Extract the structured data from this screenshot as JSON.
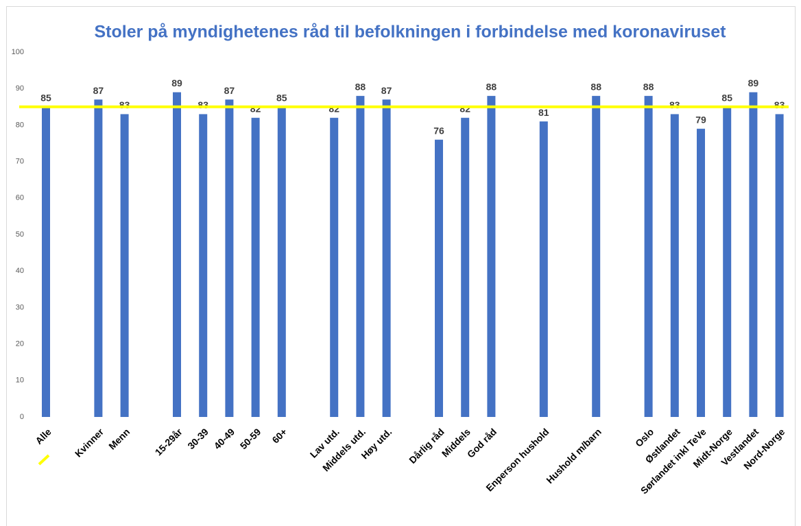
{
  "chart_data": {
    "type": "bar",
    "title": "Stoler på myndighetenes råd til befolkningen i forbindelse med koronaviruset",
    "categories": [
      "Alle",
      null,
      "Kvinner",
      "Menn",
      null,
      "15-29år",
      "30-39",
      "40-49",
      "50-59",
      "60+",
      null,
      "Lav utd.",
      "Middels utd.",
      "Høy utd.",
      null,
      "Dårlig råd",
      "Middels",
      "God råd",
      null,
      "Enperson hushold",
      null,
      "Hushold m/barn",
      null,
      "Oslo",
      "Østlandet",
      "Sørlandet inkl TeVe",
      "Midt-Norge",
      "Vestlandet",
      "Nord-Norge"
    ],
    "values": [
      85,
      null,
      87,
      83,
      null,
      89,
      83,
      87,
      82,
      85,
      null,
      82,
      88,
      87,
      null,
      76,
      82,
      88,
      null,
      81,
      null,
      88,
      null,
      88,
      83,
      79,
      85,
      89,
      83
    ],
    "color": "#4472c4",
    "reference_line": {
      "value": 85,
      "color": "#ffff00"
    },
    "ylim": [
      0,
      100
    ],
    "yticks": [
      0,
      10,
      20,
      30,
      40,
      50,
      60,
      70,
      80,
      90,
      100
    ],
    "grid": false
  }
}
